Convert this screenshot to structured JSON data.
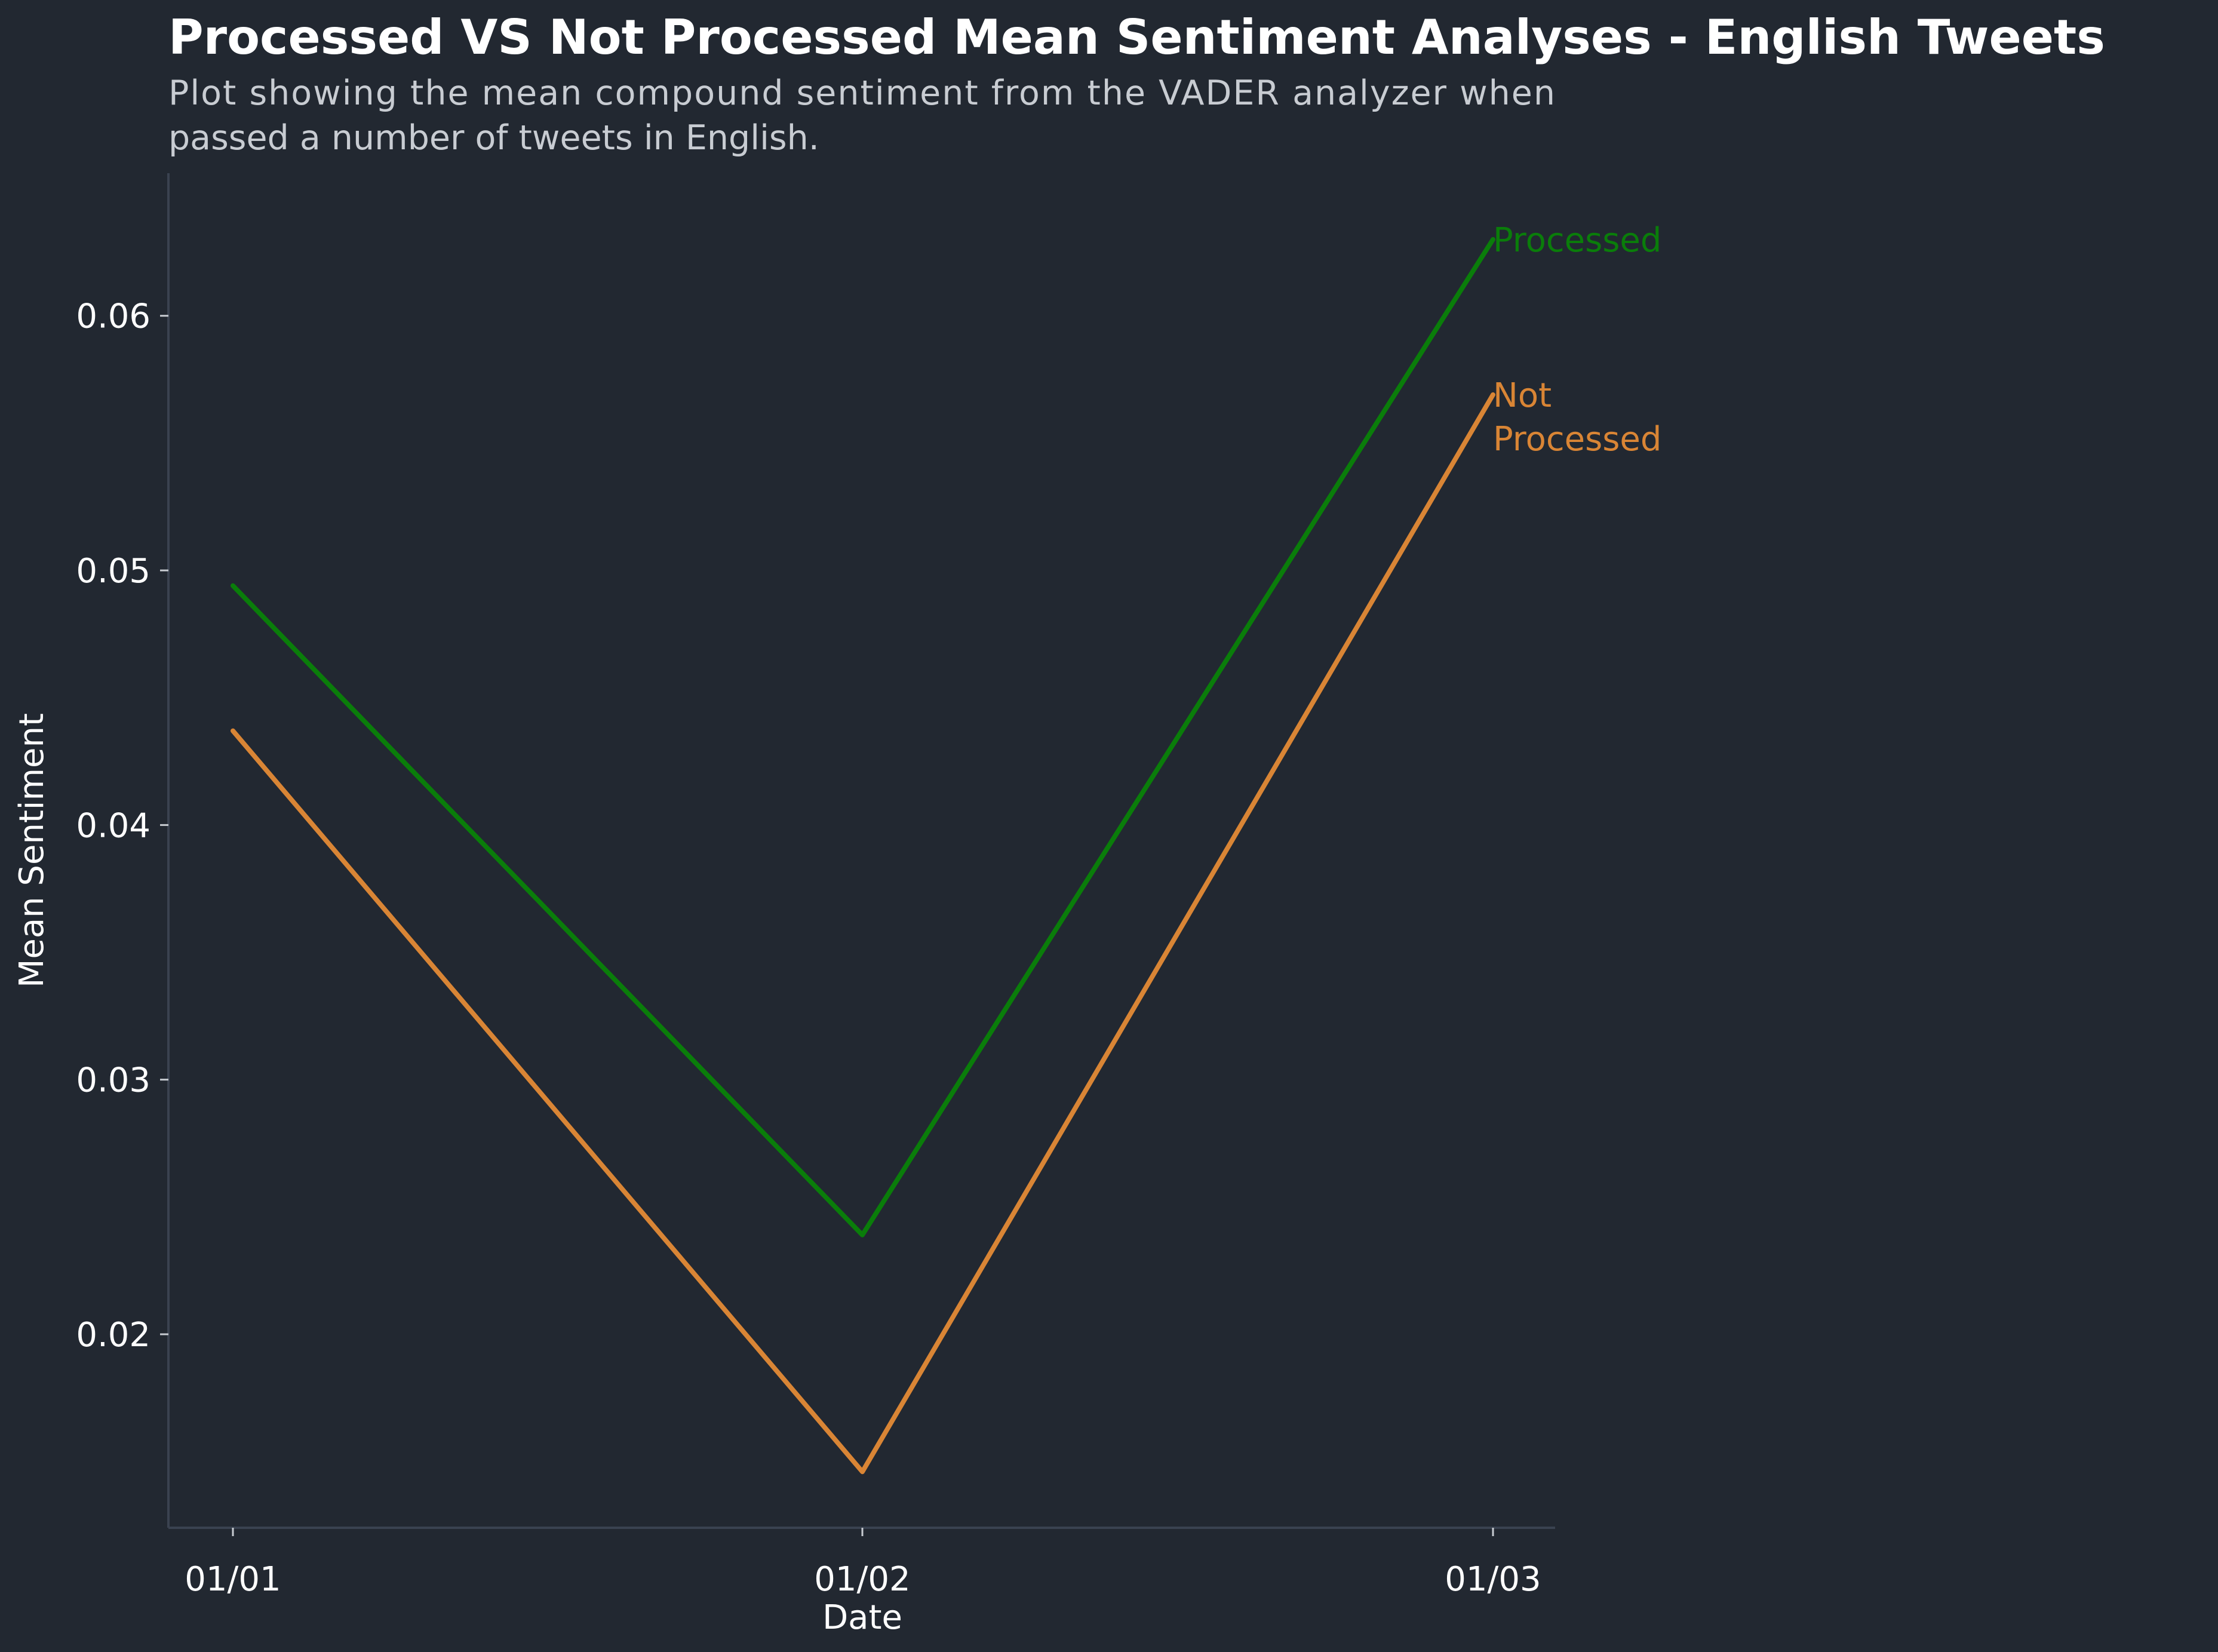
{
  "chart_data": {
    "type": "line",
    "title": "Processed VS Not Processed Mean Sentiment Analyses - English Tweets",
    "subtitle_lines": [
      "Plot showing the mean compound sentiment from the VADER analyzer when",
      "passed a number of tweets in English."
    ],
    "xlabel": "Date",
    "ylabel": "Mean Sentiment",
    "categories": [
      "01/01",
      "01/02",
      "01/03"
    ],
    "series": [
      {
        "name": "Processed",
        "label_lines": [
          "Processed"
        ],
        "color": "#0a7d0a",
        "values": [
          0.0494,
          0.0239,
          0.063
        ]
      },
      {
        "name": "Not Processed",
        "label_lines": [
          "Not",
          "Processed"
        ],
        "color": "#d98535",
        "values": [
          0.0437,
          0.0146,
          0.0569
        ]
      }
    ],
    "ylim": [
      0.0124,
      0.0656
    ],
    "yticks": [
      0.02,
      0.03,
      0.04,
      0.05,
      0.06
    ],
    "ytick_labels": [
      "0.02",
      "0.03",
      "0.04",
      "0.05",
      "0.06"
    ],
    "grid": false,
    "legend": "direct labels at line ends",
    "colors": {
      "background": "#222831",
      "axis": "#3a4250"
    }
  }
}
